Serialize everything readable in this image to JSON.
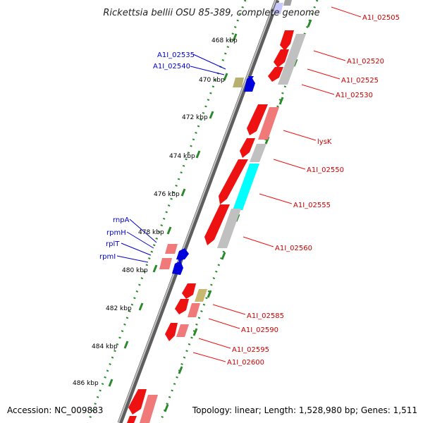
{
  "title": "Rickettsia bellii OSU 85-389, complete genome",
  "footer": {
    "accession": "Accession: NC_009883",
    "summary": "Topology: linear; Length: 1,528,980 bp; Genes: 1,511"
  },
  "colors": {
    "background": "#ffffff",
    "backbone": "#808080",
    "tick_dots": "#2f8f2f",
    "forward_gene": "#ff0000",
    "reverse_gene": "#ff0000",
    "pseudogene": "#c0c0c0",
    "pale_gene": "#f08080",
    "rna_gene": "#0000ff",
    "cyan_gene": "#00ffff",
    "olive_gene": "#c0b060",
    "label_red": "#cc0000",
    "label_blue": "#0000cc"
  },
  "scale_ticks": [
    "468 kbp",
    "470 kbp",
    "472 kbp",
    "474 kbp",
    "476 kbp",
    "478 kbp",
    "480 kbp",
    "482 kbp",
    "484 kbp",
    "486 kbp"
  ],
  "right_labels": [
    "A1I_02505",
    "A1I_02520",
    "A1I_02525",
    "A1I_02530",
    "lysK",
    "A1I_02550",
    "A1I_02555",
    "A1I_02560",
    "A1I_02585",
    "A1I_02590",
    "A1I_02595",
    "A1I_02600"
  ],
  "left_labels": [
    "A1I_02535",
    "A1I_02540",
    "rnpA",
    "rpmH",
    "rplT",
    "rpmI"
  ]
}
